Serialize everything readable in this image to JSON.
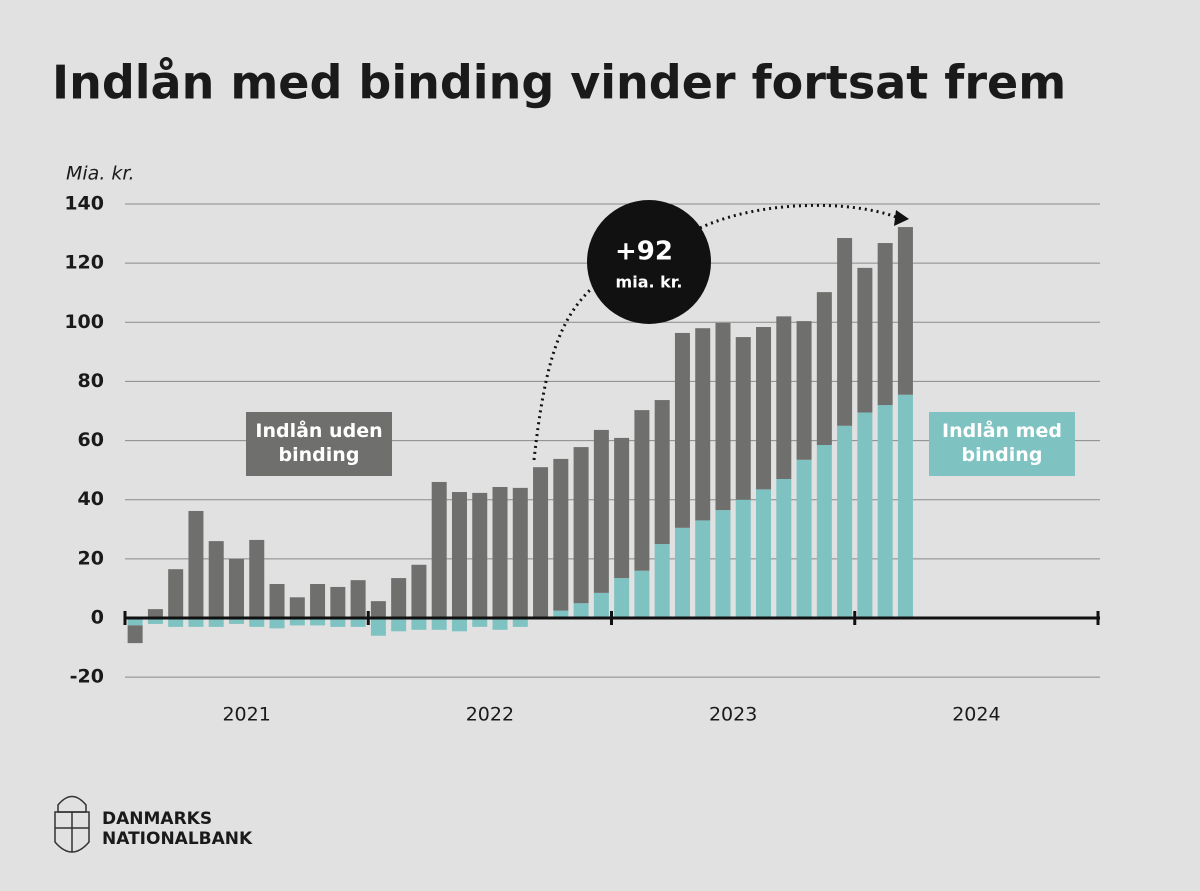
{
  "chart_data": {
    "type": "stacked_bar",
    "title": "Indlån med binding vinder fortsat frem",
    "y_unit": "Mia. kr.",
    "categories": [
      null,
      null,
      null,
      null,
      null,
      null,
      null,
      null,
      null,
      null,
      null,
      null,
      null,
      null,
      null,
      null,
      null,
      null,
      null,
      null,
      null,
      null,
      null,
      null,
      null,
      null,
      null,
      null,
      null,
      null,
      null,
      null,
      null,
      null,
      null,
      null,
      null,
      null,
      null
    ],
    "x_year_labels": [
      "2021",
      "2022",
      "2023",
      "2024"
    ],
    "series": [
      {
        "name": "Indlån med binding",
        "color": "#7ec2c2",
        "values": [
          -2.5,
          -2,
          -3,
          -3,
          -3,
          -2,
          -3,
          -3.5,
          -2.5,
          -2.5,
          -3,
          -3,
          -6,
          -4.5,
          -4,
          -4,
          -4.5,
          -3,
          -4,
          -3,
          0.5,
          2.5,
          5,
          8.5,
          13.5,
          16,
          25,
          30.5,
          33,
          36.5,
          40,
          43.5,
          47,
          53.5,
          58.5,
          65,
          69.5,
          72,
          75.5
        ]
      },
      {
        "name": "Indlån uden binding",
        "color": "#6f6f6d",
        "values": [
          -6,
          3,
          16.5,
          36.2,
          26,
          20,
          26.4,
          11.5,
          7,
          11.5,
          10.5,
          12.8,
          5.7,
          13.5,
          18,
          46,
          42.6,
          42.3,
          44.3,
          44,
          50.5,
          51.3,
          52.8,
          55.1,
          47.4,
          54.3,
          48.7,
          65.9,
          65,
          63.3,
          55,
          54.9,
          55,
          46.9,
          51.7,
          63.5,
          48.9,
          54.8,
          56.7
        ]
      }
    ],
    "ylim": [
      -25,
      140
    ],
    "yticks": [
      -20,
      0,
      20,
      40,
      60,
      80,
      100,
      120,
      140
    ],
    "grid": true,
    "annotation": {
      "value": "+92",
      "unit": "mia. kr."
    }
  },
  "footer": {
    "logo_line1": "DANMARKS",
    "logo_line2": "NATIONALBANK"
  }
}
